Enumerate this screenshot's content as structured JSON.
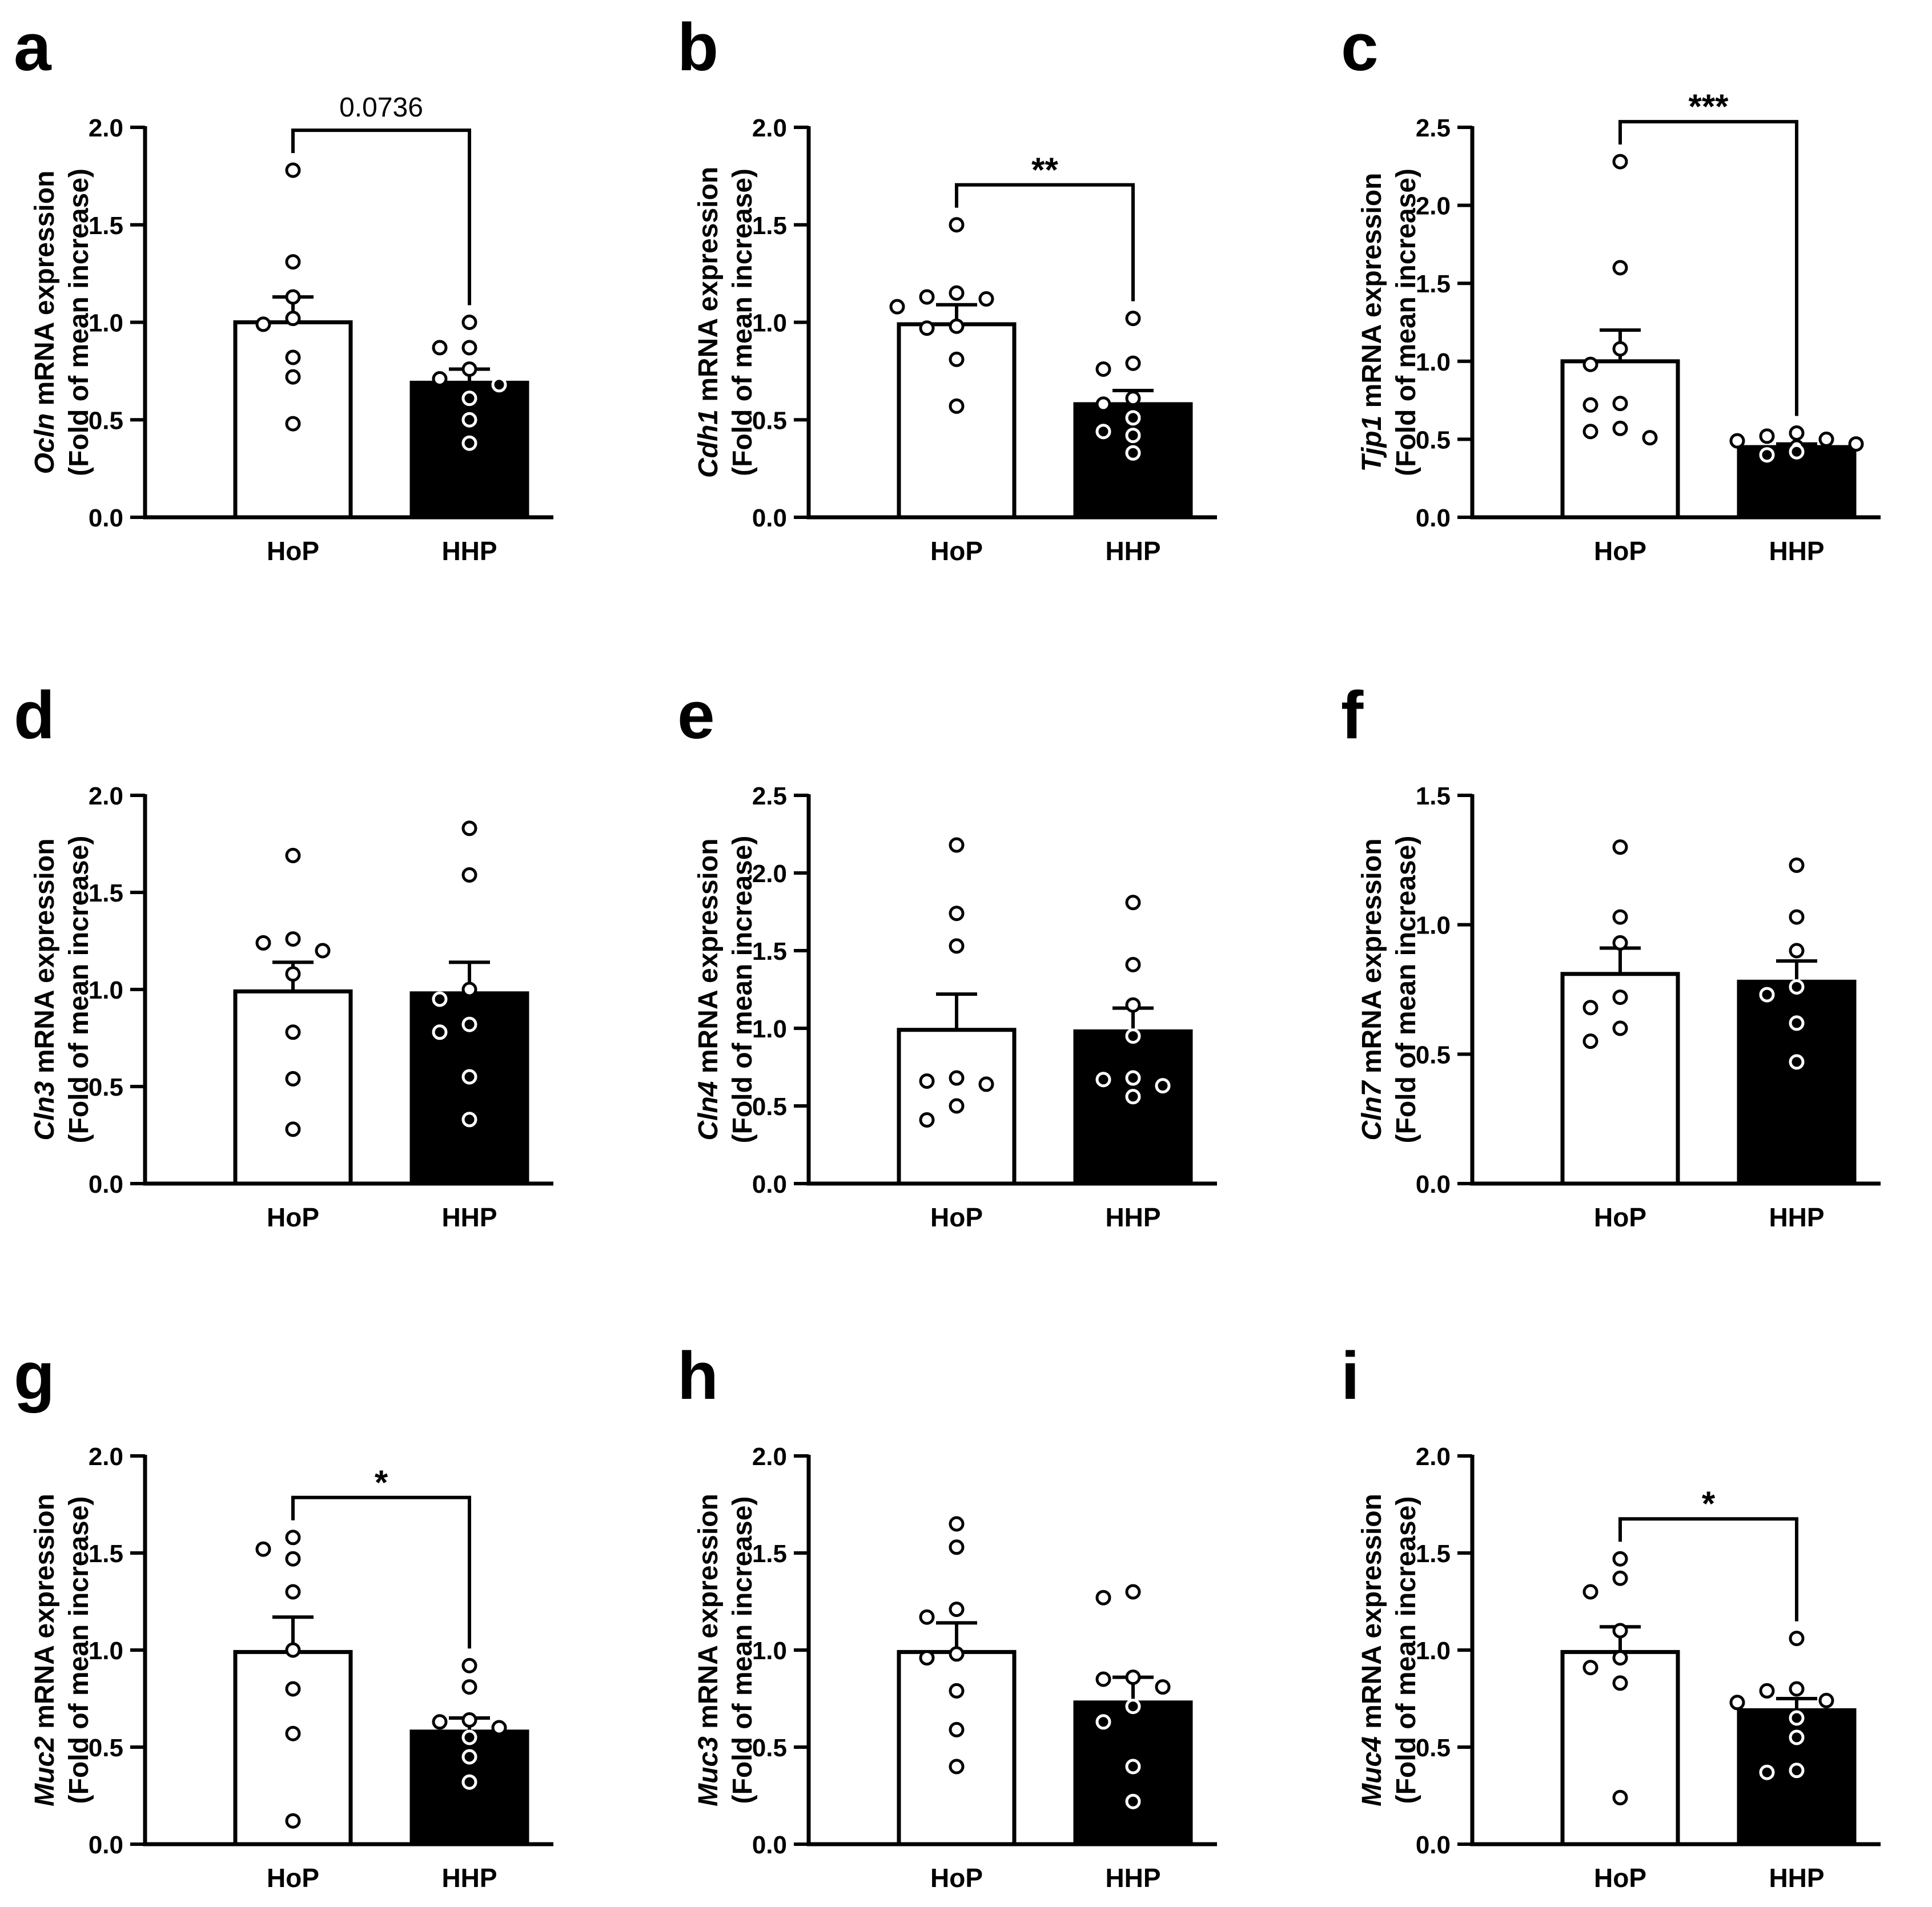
{
  "chart_data": [
    {
      "panel": "a",
      "type": "bar",
      "categories": [
        "HoP",
        "HHP"
      ],
      "ylabel_gene": "Ocln",
      "ylabel_rest": " mRNA expression",
      "ylabel_line2": "(Fold of mean increase)",
      "ylim": [
        0,
        2.0
      ],
      "yticks": [
        "0.0",
        "0.5",
        "1.0",
        "1.5",
        "2.0"
      ],
      "series": [
        {
          "name": "HoP",
          "mean": 1.0,
          "sem": 0.13,
          "fill": "#ffffff",
          "points": [
            1.78,
            1.31,
            1.13,
            1.02,
            0.99,
            0.82,
            0.72,
            0.48
          ]
        },
        {
          "name": "HHP",
          "mean": 0.69,
          "sem": 0.07,
          "fill": "#000000",
          "points": [
            1.0,
            0.87,
            0.87,
            0.76,
            0.71,
            0.68,
            0.61,
            0.5,
            0.38
          ]
        }
      ],
      "significance": "0.0736"
    },
    {
      "panel": "b",
      "type": "bar",
      "categories": [
        "HoP",
        "HHP"
      ],
      "ylabel_gene": "Cdh1",
      "ylabel_rest": " mRNA expression",
      "ylabel_line2": "(Fold of mean increase)",
      "ylim": [
        0,
        2.0
      ],
      "yticks": [
        "0.0",
        "0.5",
        "1.0",
        "1.5",
        "2.0"
      ],
      "series": [
        {
          "name": "HoP",
          "mean": 0.99,
          "sem": 0.1,
          "fill": "#ffffff",
          "points": [
            1.5,
            1.15,
            1.13,
            1.12,
            1.08,
            0.98,
            0.97,
            0.81,
            0.57
          ]
        },
        {
          "name": "HHP",
          "mean": 0.58,
          "sem": 0.07,
          "fill": "#000000",
          "points": [
            1.02,
            0.79,
            0.76,
            0.61,
            0.58,
            0.51,
            0.44,
            0.42,
            0.33
          ]
        }
      ],
      "significance": "**"
    },
    {
      "panel": "c",
      "type": "bar",
      "categories": [
        "HoP",
        "HHP"
      ],
      "ylabel_gene": "Tjp1",
      "ylabel_rest": " mRNA expression",
      "ylabel_line2": "(Fold of mean increase)",
      "ylim": [
        0,
        2.5
      ],
      "yticks": [
        "0.0",
        "0.5",
        "1.0",
        "1.5",
        "2.0",
        "2.5"
      ],
      "series": [
        {
          "name": "HoP",
          "mean": 1.0,
          "sem": 0.2,
          "fill": "#ffffff",
          "points": [
            2.28,
            1.6,
            1.08,
            0.98,
            0.73,
            0.72,
            0.57,
            0.55,
            0.51
          ]
        },
        {
          "name": "HHP",
          "mean": 0.45,
          "sem": 0.02,
          "fill": "#000000",
          "points": [
            0.54,
            0.52,
            0.5,
            0.49,
            0.47,
            0.45,
            0.42,
            0.4
          ]
        }
      ],
      "significance": "***"
    },
    {
      "panel": "d",
      "type": "bar",
      "categories": [
        "HoP",
        "HHP"
      ],
      "ylabel_gene": "Cln3",
      "ylabel_rest": " mRNA expression",
      "ylabel_line2": "(Fold of mean increase)",
      "ylim": [
        0,
        2.0
      ],
      "yticks": [
        "0.0",
        "0.5",
        "1.0",
        "1.5",
        "2.0"
      ],
      "series": [
        {
          "name": "HoP",
          "mean": 0.99,
          "sem": 0.15,
          "fill": "#ffffff",
          "points": [
            1.69,
            1.26,
            1.24,
            1.2,
            1.08,
            0.78,
            0.54,
            0.28
          ]
        },
        {
          "name": "HHP",
          "mean": 0.98,
          "sem": 0.16,
          "fill": "#000000",
          "points": [
            1.83,
            1.59,
            1.0,
            0.95,
            0.82,
            0.78,
            0.55,
            0.33
          ]
        }
      ],
      "significance": ""
    },
    {
      "panel": "e",
      "type": "bar",
      "categories": [
        "HoP",
        "HHP"
      ],
      "ylabel_gene": "Cln4",
      "ylabel_rest": " mRNA expression",
      "ylabel_line2": "(Fold of mean increase)",
      "ylim": [
        0,
        2.5
      ],
      "yticks": [
        "0.0",
        "0.5",
        "1.0",
        "1.5",
        "2.0",
        "2.5"
      ],
      "series": [
        {
          "name": "HoP",
          "mean": 0.99,
          "sem": 0.23,
          "fill": "#ffffff",
          "points": [
            2.18,
            1.74,
            1.53,
            0.68,
            0.66,
            0.64,
            0.5,
            0.41
          ]
        },
        {
          "name": "HHP",
          "mean": 0.98,
          "sem": 0.15,
          "fill": "#000000",
          "points": [
            1.81,
            1.41,
            1.15,
            0.95,
            0.68,
            0.67,
            0.63,
            0.56
          ]
        }
      ],
      "significance": ""
    },
    {
      "panel": "f",
      "type": "bar",
      "categories": [
        "HoP",
        "HHP"
      ],
      "ylabel_gene": "Cln7",
      "ylabel_rest": " mRNA expression",
      "ylabel_line2": "(Fold of mean increase)",
      "ylim": [
        0,
        1.5
      ],
      "yticks": [
        "0.0",
        "0.5",
        "1.0",
        "1.5"
      ],
      "series": [
        {
          "name": "HoP",
          "mean": 0.81,
          "sem": 0.1,
          "fill": "#ffffff",
          "points": [
            1.3,
            1.03,
            0.93,
            0.72,
            0.68,
            0.6,
            0.55
          ]
        },
        {
          "name": "HHP",
          "mean": 0.78,
          "sem": 0.08,
          "fill": "#000000",
          "points": [
            1.23,
            1.03,
            0.9,
            0.76,
            0.73,
            0.62,
            0.47
          ]
        }
      ],
      "significance": ""
    },
    {
      "panel": "g",
      "type": "bar",
      "categories": [
        "HoP",
        "HHP"
      ],
      "ylabel_gene": "Muc2",
      "ylabel_rest": " mRNA expression",
      "ylabel_line2": "(Fold of mean increase)",
      "ylim": [
        0,
        2.0
      ],
      "yticks": [
        "0.0",
        "0.5",
        "1.0",
        "1.5",
        "2.0"
      ],
      "series": [
        {
          "name": "HoP",
          "mean": 0.99,
          "sem": 0.18,
          "fill": "#ffffff",
          "points": [
            1.58,
            1.52,
            1.47,
            1.3,
            1.0,
            0.8,
            0.57,
            0.12
          ]
        },
        {
          "name": "HHP",
          "mean": 0.58,
          "sem": 0.07,
          "fill": "#000000",
          "points": [
            0.92,
            0.81,
            0.64,
            0.63,
            0.6,
            0.55,
            0.45,
            0.32
          ]
        }
      ],
      "significance": "*"
    },
    {
      "panel": "h",
      "type": "bar",
      "categories": [
        "HoP",
        "HHP"
      ],
      "ylabel_gene": "Muc3",
      "ylabel_rest": " mRNA expression",
      "ylabel_line2": "(Fold of mean increase)",
      "ylim": [
        0,
        2.0
      ],
      "yticks": [
        "0.0",
        "0.5",
        "1.0",
        "1.5",
        "2.0"
      ],
      "series": [
        {
          "name": "HoP",
          "mean": 0.99,
          "sem": 0.15,
          "fill": "#ffffff",
          "points": [
            1.65,
            1.53,
            1.21,
            1.17,
            0.98,
            0.96,
            0.79,
            0.59,
            0.4
          ]
        },
        {
          "name": "HHP",
          "mean": 0.73,
          "sem": 0.13,
          "fill": "#000000",
          "points": [
            1.3,
            1.27,
            0.86,
            0.85,
            0.81,
            0.71,
            0.63,
            0.4,
            0.22
          ]
        }
      ],
      "significance": ""
    },
    {
      "panel": "i",
      "type": "bar",
      "categories": [
        "HoP",
        "HHP"
      ],
      "ylabel_gene": "Muc4",
      "ylabel_rest": " mRNA expression",
      "ylabel_line2": "(Fold of mean increase)",
      "ylim": [
        0,
        2.0
      ],
      "yticks": [
        "0.0",
        "0.5",
        "1.0",
        "1.5",
        "2.0"
      ],
      "series": [
        {
          "name": "HoP",
          "mean": 0.99,
          "sem": 0.13,
          "fill": "#ffffff",
          "points": [
            1.47,
            1.37,
            1.3,
            1.1,
            0.96,
            0.91,
            0.83,
            0.24
          ]
        },
        {
          "name": "HHP",
          "mean": 0.69,
          "sem": 0.06,
          "fill": "#000000",
          "points": [
            1.06,
            0.8,
            0.79,
            0.74,
            0.73,
            0.65,
            0.55,
            0.38,
            0.37
          ]
        }
      ],
      "significance": "*"
    }
  ]
}
